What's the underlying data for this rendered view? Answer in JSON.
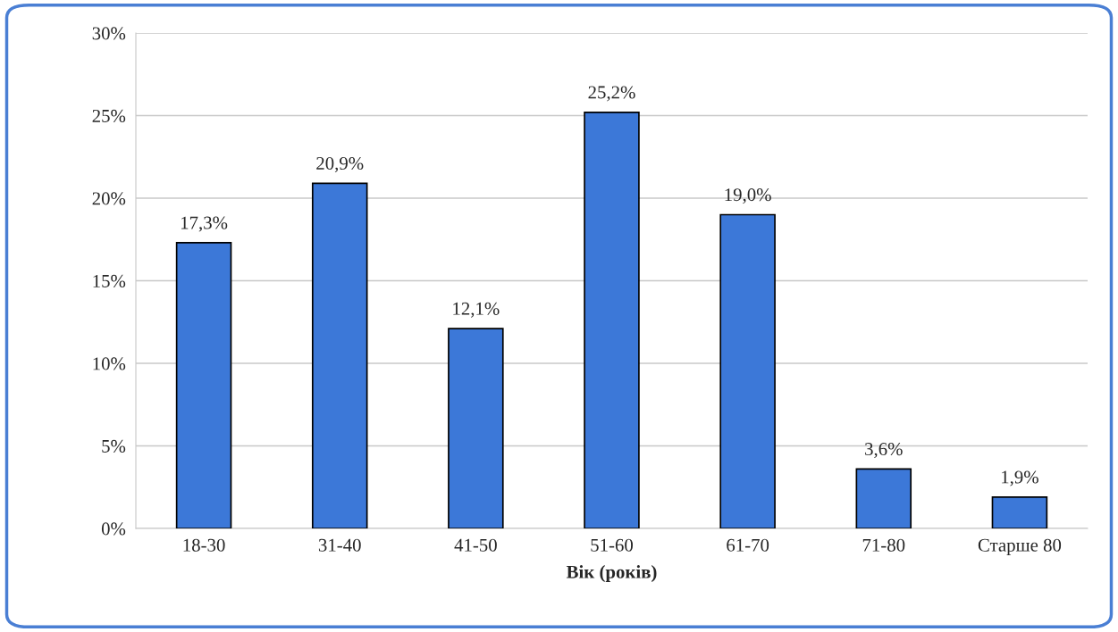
{
  "chart_data": {
    "type": "bar",
    "xlabel": "Вік (років)",
    "categories": [
      "18-30",
      "31-40",
      "41-50",
      "51-60",
      "61-70",
      "71-80",
      "Старше 80"
    ],
    "values": [
      17.3,
      20.9,
      12.1,
      25.2,
      19.0,
      3.6,
      1.9
    ],
    "value_labels": [
      "17,3%",
      "20,9%",
      "12,1%",
      "25,2%",
      "19,0%",
      "3,6%",
      "1,9%"
    ],
    "color": "#3c78d8",
    "ylim": [
      0,
      30
    ],
    "yticks": [
      {
        "value": 0,
        "label": "0%"
      },
      {
        "value": 5,
        "label": "5%"
      },
      {
        "value": 10,
        "label": "10%"
      },
      {
        "value": 15,
        "label": "15%"
      },
      {
        "value": 20,
        "label": "20%"
      },
      {
        "value": 25,
        "label": "25%"
      },
      {
        "value": 30,
        "label": "30%"
      }
    ],
    "grid": "y",
    "legend": false
  }
}
